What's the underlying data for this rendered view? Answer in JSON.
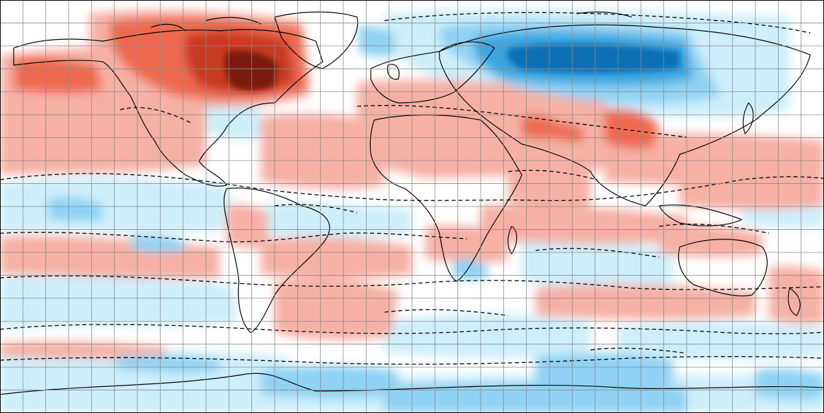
{
  "map": {
    "projection": "equirectangular",
    "extent": {
      "lon": [
        -180,
        180
      ],
      "lat": [
        -90,
        90
      ]
    },
    "graticule": {
      "lon_step_deg": 10,
      "lat_step_deg": 10,
      "color": "#8a8a8a"
    },
    "palette": {
      "strong_warm": "#7a1a0e",
      "warm_3": "#c83a22",
      "warm_2": "#ee6a50",
      "warm_1": "#f6b0a4",
      "neutral": "#ffffff",
      "cool_1": "#cdeefb",
      "cool_2": "#8fd2f3",
      "cool_3": "#3aa6e0",
      "strong_cool": "#0b6fb5",
      "coast": "#000000",
      "contour": "#000000"
    },
    "contour_style": "dashed",
    "frame_color": "#000000"
  }
}
